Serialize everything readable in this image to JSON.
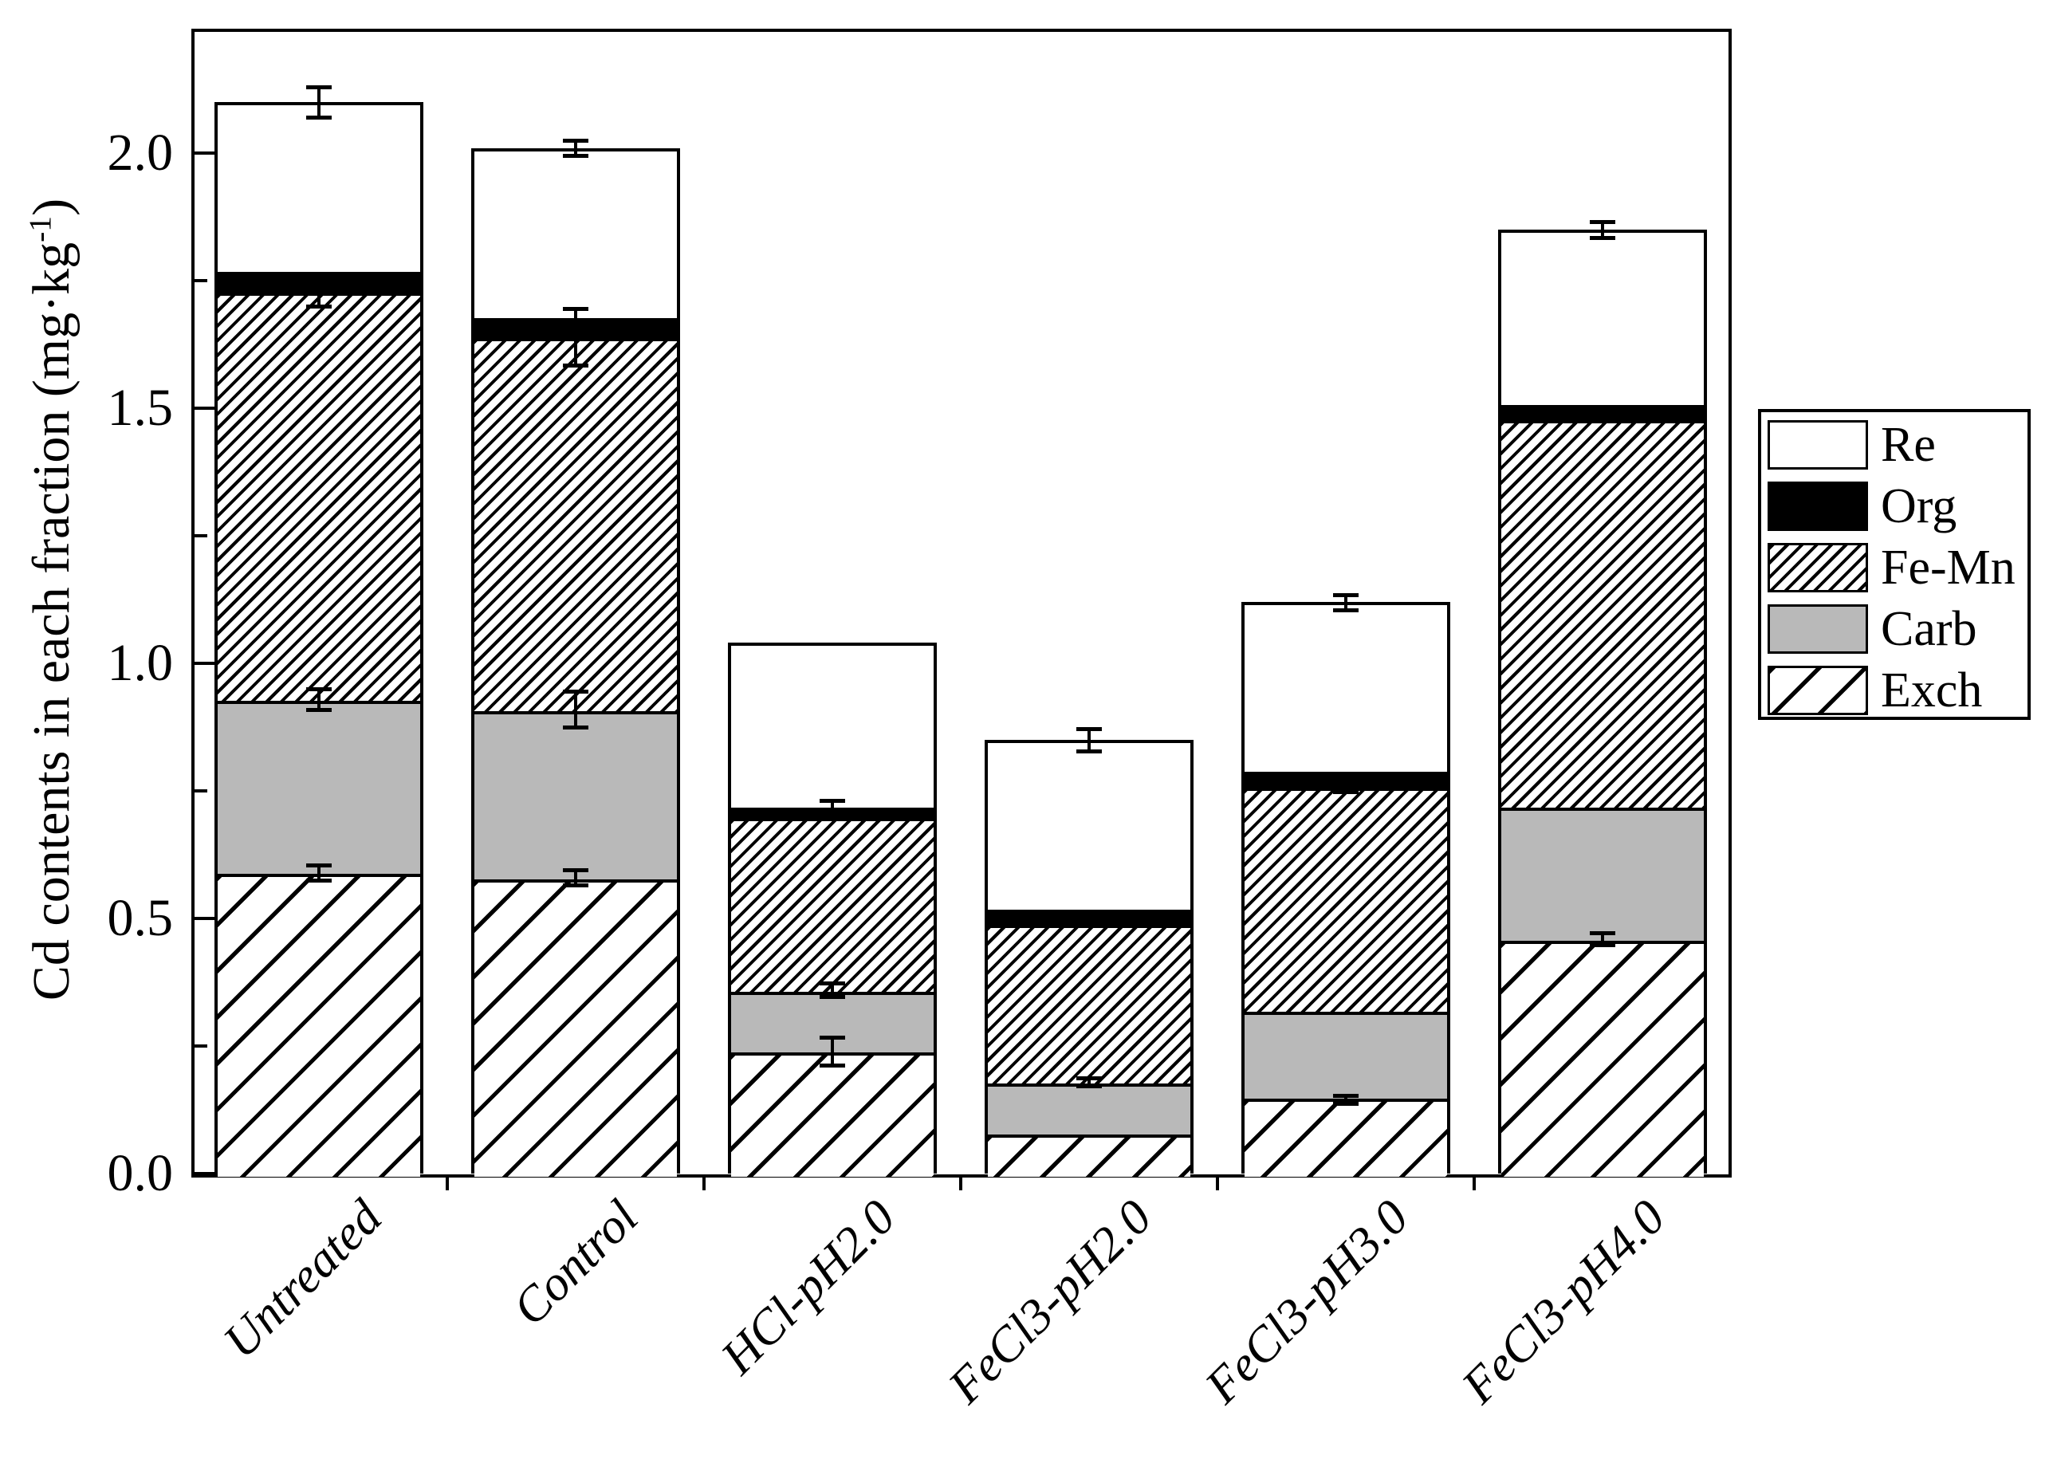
{
  "figure": {
    "ylabel": {
      "pre": "Cd contents in each fraction (mg·kg",
      "sup": "-1",
      "post": ")"
    },
    "ytick_labels": [
      "0.0",
      "0.5",
      "1.0",
      "1.5",
      "2.0"
    ]
  },
  "legend": {
    "items": [
      "Re",
      "Org",
      "Fe-Mn",
      "Carb",
      "Exch"
    ]
  },
  "chart_data": {
    "type": "bar",
    "stacked": true,
    "title": "",
    "xlabel": "",
    "ylabel": "Cd contents in each fraction (mg·kg-1)",
    "categories": [
      "Untreated",
      "Control",
      "HCl-pH2.0",
      "FeCl3-pH2.0",
      "FeCl3-pH3.0",
      "FeCl3-pH4.0"
    ],
    "series": [
      {
        "name": "Exch",
        "pattern": "hatch-sparse",
        "fill": "diagonal hatch sparse",
        "values": [
          0.59,
          0.58,
          0.24,
          0.08,
          0.15,
          0.46
        ]
      },
      {
        "name": "Carb",
        "pattern": "solid-gray",
        "color": "#b9b9b9",
        "values": [
          0.34,
          0.33,
          0.12,
          0.1,
          0.17,
          0.26
        ]
      },
      {
        "name": "Fe-Mn",
        "pattern": "hatch-dense",
        "fill": "diagonal hatch dense",
        "values": [
          0.8,
          0.73,
          0.34,
          0.31,
          0.44,
          0.76
        ]
      },
      {
        "name": "Org",
        "pattern": "solid-black",
        "color": "#000000",
        "values": [
          0.04,
          0.04,
          0.02,
          0.03,
          0.03,
          0.03
        ]
      },
      {
        "name": "Re",
        "pattern": "solid-white",
        "color": "#ffffff",
        "values": [
          0.33,
          0.33,
          0.32,
          0.33,
          0.33,
          0.34
        ]
      }
    ],
    "stack_totals": [
      2.1,
      2.01,
      1.04,
      0.85,
      1.12,
      1.85
    ],
    "error_bars": [
      {
        "bar": 0,
        "at": 0.59,
        "err": 0.015
      },
      {
        "bar": 0,
        "at": 0.93,
        "err": 0.02
      },
      {
        "bar": 0,
        "at": 1.73,
        "err": 0.03
      },
      {
        "bar": 0,
        "at": 2.1,
        "err": 0.03
      },
      {
        "bar": 1,
        "at": 0.58,
        "err": 0.015
      },
      {
        "bar": 1,
        "at": 0.91,
        "err": 0.035
      },
      {
        "bar": 1,
        "at": 1.64,
        "err": 0.055
      },
      {
        "bar": 1,
        "at": 2.01,
        "err": 0.015
      },
      {
        "bar": 2,
        "at": 0.24,
        "err": 0.027
      },
      {
        "bar": 2,
        "at": 0.36,
        "err": 0.013
      },
      {
        "bar": 2,
        "at": 0.72,
        "err": 0.012
      },
      {
        "bar": 3,
        "at": 0.18,
        "err": 0.008
      },
      {
        "bar": 3,
        "at": 0.85,
        "err": 0.022
      },
      {
        "bar": 4,
        "at": 0.145,
        "err": 0.008
      },
      {
        "bar": 4,
        "at": 0.76,
        "err": 0.012
      },
      {
        "bar": 4,
        "at": 1.12,
        "err": 0.015
      },
      {
        "bar": 5,
        "at": 0.46,
        "err": 0.012
      },
      {
        "bar": 5,
        "at": 1.85,
        "err": 0.015
      }
    ],
    "ylim": [
      0,
      2.25
    ],
    "yticks": [
      0.0,
      0.5,
      1.0,
      1.5,
      2.0
    ],
    "yticks_minor": [
      0.25,
      0.75,
      1.25,
      1.75
    ],
    "grid": false,
    "legend_position": "right-outside",
    "legend_order_top_to_bottom": [
      "Re",
      "Org",
      "Fe-Mn",
      "Carb",
      "Exch"
    ]
  }
}
